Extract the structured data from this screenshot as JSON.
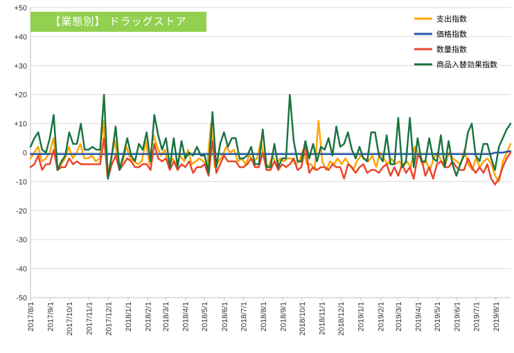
{
  "chart_data": {
    "type": "line",
    "title": "【業態別】 ドラッグストア",
    "xlabel": "",
    "ylabel": "",
    "ylim": [
      -50,
      50
    ],
    "yticks": [
      50,
      40,
      30,
      20,
      10,
      0,
      -10,
      -20,
      -30,
      -40,
      -50
    ],
    "ytick_labels": [
      "+50",
      "+40",
      "+30",
      "+20",
      "+10",
      "0",
      "-10",
      "-20",
      "-30",
      "-40",
      "-50"
    ],
    "x_start": "2017/8/1",
    "x_end": "2019/8/24",
    "xtick_labels": [
      "2017/8/1",
      "2017/9/1",
      "2017/10/1",
      "2017/11/1",
      "2017/12/1",
      "2018/1/1",
      "2018/2/1",
      "2018/3/1",
      "2018/4/1",
      "2018/5/1",
      "2018/6/1",
      "2018/7/1",
      "2018/8/1",
      "2018/9/1",
      "2018/10/1",
      "2018/11/1",
      "2018/12/1",
      "2019/1/1",
      "2019/2/1",
      "2019/3/1",
      "2019/4/1",
      "2019/5/1",
      "2019/6/1",
      "2019/7/1",
      "2019/8/1"
    ],
    "grid": "horizontal",
    "legend_position": "top-right",
    "series": [
      {
        "name": "支出指数",
        "color": "#ffa500",
        "values": [
          -2,
          0,
          2,
          -3,
          -2,
          0,
          5,
          -6,
          -4,
          -2,
          2,
          -2,
          0,
          3,
          -2,
          -2,
          -1,
          -3,
          -2,
          11,
          -8,
          -2,
          4,
          -5,
          -3,
          2,
          -2,
          -3,
          -4,
          -3,
          4,
          -4,
          6,
          2,
          -1,
          1,
          -5,
          -2,
          -4,
          -1,
          -3,
          1,
          -4,
          -3,
          -2,
          -3,
          -5,
          10,
          -5,
          -3,
          -1,
          2,
          0,
          1,
          -3,
          -2,
          -4,
          -1,
          -3,
          -2,
          4,
          -3,
          -5,
          -1,
          -4,
          -2,
          -3,
          -2,
          -2,
          -4,
          -3,
          1,
          -4,
          -4,
          -6,
          11,
          -3,
          -6,
          -3,
          -4,
          -2,
          -4,
          -2,
          -4,
          -6,
          -3,
          -1,
          -2,
          -3,
          -1,
          -5,
          0,
          -2,
          -4,
          -2,
          -4,
          -3,
          -5,
          -3,
          -5,
          2,
          0,
          -4,
          -3,
          -6,
          -2,
          0,
          -3,
          -4,
          0,
          -2,
          -3,
          -4,
          1,
          -4,
          -6,
          -2,
          -5,
          -3,
          -2,
          -4,
          -8,
          -10,
          -3,
          0,
          3
        ]
      },
      {
        "name": "価格指数",
        "color": "#2255aa",
        "values": [
          -0.5,
          -0.5,
          -0.5,
          -0.5,
          -0.5,
          -0.5,
          -0.5,
          -0.5,
          -0.5,
          -0.5,
          -0.5,
          -0.5,
          -0.5,
          -0.5,
          -0.5,
          -0.5,
          -0.5,
          -0.5,
          -0.5,
          -0.5,
          -0.5,
          -0.5,
          -0.5,
          -0.5,
          -0.5,
          -0.5,
          -0.5,
          -0.5,
          -0.5,
          -0.5,
          -0.5,
          -0.5,
          -0.5,
          -0.5,
          -0.5,
          -0.5,
          -0.5,
          -0.5,
          -0.5,
          -0.5,
          -0.5,
          -0.5,
          -0.5,
          -0.5,
          -0.5,
          -0.5,
          -0.5,
          -0.5,
          -0.5,
          -0.5,
          -0.5,
          -0.5,
          -0.5,
          -0.5,
          -0.5,
          -0.5,
          -0.5,
          -0.5,
          -0.5,
          -0.5,
          -0.5,
          -0.5,
          -0.5,
          -0.5,
          -0.5,
          -0.5,
          -0.5,
          -0.5,
          -0.5,
          -0.5,
          -0.5,
          -0.5,
          -0.5,
          -0.5,
          -0.5,
          -0.5,
          -0.5,
          -0.5,
          -0.5,
          -0.5,
          -0.5,
          -0.5,
          -0.5,
          -0.5,
          -0.5,
          -0.5,
          -0.5,
          -0.5,
          -0.5,
          -0.5,
          -0.5,
          -0.5,
          -0.5,
          -0.5,
          -0.5,
          -0.5,
          -0.5,
          -0.5,
          -0.5,
          -0.5,
          -0.5,
          -0.5,
          -0.5,
          -0.5,
          -0.5,
          -0.5,
          -0.5,
          -0.5,
          -0.5,
          -0.5,
          -0.5,
          -0.5,
          -0.5,
          -0.5,
          -0.5,
          -0.5,
          -0.5,
          -0.5,
          -0.5,
          0,
          0,
          0,
          0.3,
          0.5
        ]
      },
      {
        "name": "数量指数",
        "color": "#e8452a",
        "values": [
          -5,
          -4,
          -1,
          -6,
          -4,
          -4,
          1,
          -6,
          -5,
          -5,
          -2,
          -4,
          -3,
          -4,
          -4,
          -4,
          -4,
          -4,
          -4,
          5,
          -9,
          -4,
          -1,
          -6,
          -4,
          -2,
          -3,
          -5,
          -5,
          -4,
          -4,
          -6,
          3,
          -2,
          -3,
          -2,
          -6,
          -3,
          -6,
          -4,
          -5,
          -3,
          -7,
          -5,
          -5,
          -4,
          -8,
          4,
          -7,
          -4,
          -1,
          -3,
          -3,
          -3,
          -5,
          -5,
          -4,
          -2,
          -5,
          -5,
          0,
          -6,
          -6,
          -3,
          -6,
          -4,
          -5,
          -4,
          -2,
          -6,
          -5,
          3,
          -7,
          -5,
          -6,
          -5,
          -5,
          -6,
          -4,
          -5,
          -5,
          -9,
          -4,
          -5,
          -7,
          -5,
          -4,
          -7,
          -6,
          -6,
          -7,
          -5,
          -4,
          -8,
          -5,
          -8,
          -4,
          -7,
          -5,
          -9,
          -1,
          -2,
          -8,
          -5,
          -9,
          -4,
          -3,
          -5,
          -5,
          -3,
          -5,
          -6,
          -6,
          -2,
          -5,
          -7,
          -5,
          -7,
          -4,
          -9,
          -11,
          -9,
          -5,
          -2,
          0
        ]
      },
      {
        "name": "商品入替効果指数",
        "color": "#1a7340",
        "values": [
          2,
          5,
          7,
          1,
          0,
          5,
          13,
          -6,
          -3,
          -1,
          7,
          3,
          3,
          10,
          1,
          1,
          2,
          1,
          1,
          20,
          -9,
          -1,
          9,
          -6,
          -1,
          5,
          -1,
          -3,
          3,
          1,
          7,
          -3,
          13,
          6,
          1,
          5,
          -5,
          5,
          -5,
          4,
          -2,
          0,
          -1,
          2,
          -1,
          -1,
          -7,
          14,
          -5,
          3,
          7,
          2,
          5,
          5,
          -2,
          -2,
          -1,
          2,
          -4,
          -4,
          8,
          -5,
          -5,
          3,
          -5,
          -2,
          -2,
          20,
          4,
          -3,
          -3,
          4,
          -2,
          3,
          -3,
          2,
          1,
          5,
          -1,
          9,
          2,
          3,
          7,
          1,
          -2,
          2,
          -2,
          -3,
          7,
          7,
          -1,
          -3,
          6,
          -4,
          -4,
          12,
          -5,
          -3,
          12,
          -5,
          5,
          -3,
          -3,
          5,
          -2,
          -3,
          6,
          -5,
          4,
          -4,
          -8,
          -4,
          -1,
          7,
          10,
          -1,
          -3,
          3,
          3,
          -2,
          -6,
          2,
          5,
          8,
          10
        ]
      }
    ]
  }
}
